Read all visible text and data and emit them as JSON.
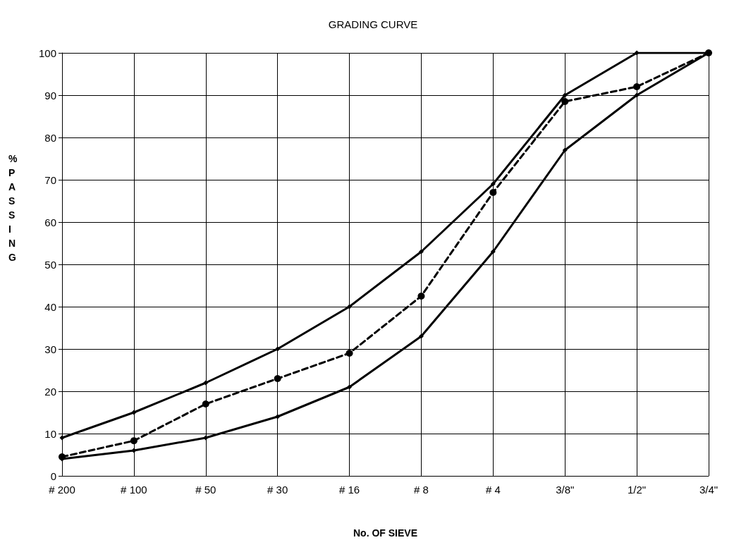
{
  "chart_data": {
    "type": "line",
    "title": "GRADING CURVE",
    "xlabel": "No. OF SIEVE",
    "ylabel": "% PASSING",
    "categories": [
      "# 200",
      "# 100",
      "# 50",
      "# 30",
      "# 16",
      "# 8",
      "# 4",
      "3/8\"",
      "1/2\"",
      "3/4\""
    ],
    "ylim": [
      0,
      100
    ],
    "yticks": [
      0,
      10,
      20,
      30,
      40,
      50,
      60,
      70,
      80,
      90,
      100
    ],
    "grid": true,
    "series": [
      {
        "color": "#000000",
        "marker": "diamond",
        "line_style": "solid",
        "values": [
          9,
          15,
          22,
          30,
          40,
          53,
          69,
          90,
          100,
          100
        ]
      },
      {
        "color": "#000000",
        "marker": "circle",
        "line_style": "dashed",
        "values": [
          4.5,
          8.3,
          17,
          23,
          29,
          42.5,
          67,
          88.5,
          92,
          100
        ]
      },
      {
        "color": "#000000",
        "marker": "diamond",
        "line_style": "solid",
        "values": [
          4,
          6,
          9,
          14,
          21,
          33,
          53,
          77,
          90,
          100
        ]
      }
    ]
  }
}
